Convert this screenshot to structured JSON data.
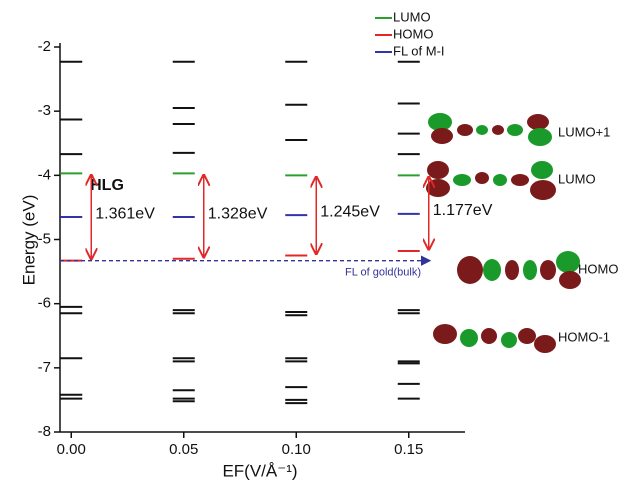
{
  "chart_data": {
    "type": "levels",
    "xlabel": "EF(V/Å⁻¹)",
    "ylabel": "Energy (eV)",
    "x": [
      0,
      0.05,
      0.1,
      0.15
    ],
    "xlim": [
      -0.005,
      0.175
    ],
    "xticks": [
      {
        "value": 0,
        "label": "0.00"
      },
      {
        "value": 0.05,
        "label": "0.05"
      },
      {
        "value": 0.1,
        "label": "0.10"
      },
      {
        "value": 0.15,
        "label": "0.15"
      }
    ],
    "ylim": [
      -8,
      -2
    ],
    "yticks": [
      -2,
      -3,
      -4,
      -5,
      -6,
      -7,
      -8
    ],
    "series": [
      {
        "name": "LUMO",
        "color": "#2ca02c",
        "values": [
          -3.97,
          -3.97,
          -4.0,
          -4.0
        ]
      },
      {
        "name": "HOMO",
        "color": "#e02828",
        "values": [
          -5.33,
          -5.3,
          -5.25,
          -5.18
        ]
      },
      {
        "name": "FL of M-I",
        "color": "#3333aa",
        "values": [
          -4.65,
          -4.65,
          -4.62,
          -4.6
        ]
      }
    ],
    "other_levels": {
      "color": "#111111",
      "values": [
        [
          -2.23,
          -3.13,
          -3.67,
          -6.05,
          -6.15,
          -6.85,
          -7.42,
          -7.48
        ],
        [
          -2.23,
          -2.95,
          -3.2,
          -3.65,
          -6.1,
          -6.15,
          -6.85,
          -6.9,
          -7.35,
          -7.48,
          -7.52
        ],
        [
          -2.23,
          -2.9,
          -3.45,
          -6.13,
          -6.18,
          -6.85,
          -6.9,
          -7.3,
          -7.5,
          -7.55
        ],
        [
          -2.23,
          -2.88,
          -3.35,
          -3.67,
          -6.1,
          -6.15,
          -6.9,
          -6.93,
          -7.25,
          -7.48
        ]
      ]
    },
    "gaps": {
      "color": "#e02828",
      "values": [
        1.361,
        1.328,
        1.245,
        1.177
      ],
      "value_labels": [
        "1.361eV",
        "1.328eV",
        "1.245eV",
        "1.177eV"
      ]
    },
    "gap_title": "HLG",
    "fermi_gold": {
      "value": -5.33,
      "label": "FL of gold(bulk)",
      "color": "#333399"
    },
    "orbitals": [
      "LUMO+1",
      "LUMO",
      "HOMO",
      "HOMO-1"
    ]
  }
}
